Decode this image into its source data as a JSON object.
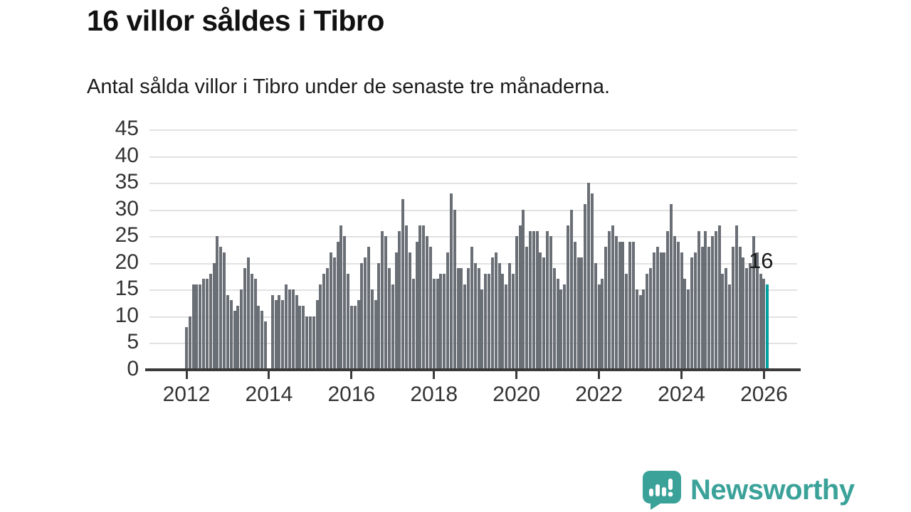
{
  "header": {
    "title": "16 villor såldes i Tibro",
    "subtitle": "Antal sålda villor i Tibro under de senaste tre månaderna."
  },
  "branding": {
    "logo_text": "Newsworthy",
    "logo_color": "#3ba29a",
    "logo_icon": "speech-bubble-bar-chart-icon"
  },
  "chart_data": {
    "type": "bar",
    "title": "16 villor såldes i Tibro",
    "xlabel": "",
    "ylabel": "",
    "ylim": [
      0,
      45
    ],
    "yticks": [
      0,
      5,
      10,
      15,
      20,
      25,
      30,
      35,
      40,
      45
    ],
    "xticks": [
      "2012",
      "2014",
      "2016",
      "2018",
      "2020",
      "2022",
      "2024",
      "2026"
    ],
    "grid": true,
    "x_start": "2012-01",
    "x_end": "2026-02",
    "missing_months": [
      "2014-01"
    ],
    "bar_color": "#6a6e75",
    "highlight_color": "#00a0a2",
    "annotation": "16",
    "highlight_value": 16,
    "series": [
      {
        "year": 2012,
        "values": [
          8,
          10,
          16,
          16,
          16,
          17,
          17,
          18,
          20,
          25,
          23,
          22
        ]
      },
      {
        "year": 2013,
        "values": [
          14,
          13,
          11,
          12,
          15,
          19,
          21,
          18,
          17,
          12,
          11,
          9
        ]
      },
      {
        "year": 2014,
        "values": [
          null,
          14,
          13,
          14,
          13,
          16,
          15,
          15,
          14,
          12,
          12,
          10
        ]
      },
      {
        "year": 2015,
        "values": [
          10,
          10,
          13,
          16,
          18,
          19,
          22,
          21,
          24,
          27,
          25,
          18
        ]
      },
      {
        "year": 2016,
        "values": [
          12,
          12,
          13,
          20,
          21,
          23,
          15,
          13,
          20,
          26,
          25,
          19
        ]
      },
      {
        "year": 2017,
        "values": [
          16,
          22,
          26,
          32,
          27,
          22,
          17,
          24,
          27,
          27,
          25,
          23
        ]
      },
      {
        "year": 2018,
        "values": [
          17,
          17,
          18,
          18,
          22,
          33,
          30,
          19,
          19,
          16,
          19,
          23
        ]
      },
      {
        "year": 2019,
        "values": [
          20,
          19,
          15,
          18,
          18,
          21,
          22,
          20,
          18,
          16,
          20,
          18
        ]
      },
      {
        "year": 2020,
        "values": [
          25,
          27,
          30,
          23,
          26,
          26,
          26,
          22,
          21,
          26,
          25,
          19
        ]
      },
      {
        "year": 2021,
        "values": [
          17,
          15,
          16,
          27,
          30,
          24,
          21,
          21,
          31,
          35,
          33,
          20
        ]
      },
      {
        "year": 2022,
        "values": [
          16,
          17,
          23,
          26,
          27,
          25,
          24,
          24,
          18,
          24,
          24,
          15
        ]
      },
      {
        "year": 2023,
        "values": [
          14,
          15,
          18,
          19,
          22,
          23,
          22,
          22,
          26,
          31,
          25,
          24
        ]
      },
      {
        "year": 2024,
        "values": [
          22,
          17,
          15,
          21,
          22,
          26,
          23,
          26,
          23,
          25,
          26,
          27
        ]
      },
      {
        "year": 2025,
        "values": [
          18,
          19,
          16,
          23,
          27,
          23,
          21,
          19,
          20,
          25,
          22,
          18
        ]
      },
      {
        "year": 2026,
        "values": [
          17,
          16
        ]
      }
    ]
  }
}
